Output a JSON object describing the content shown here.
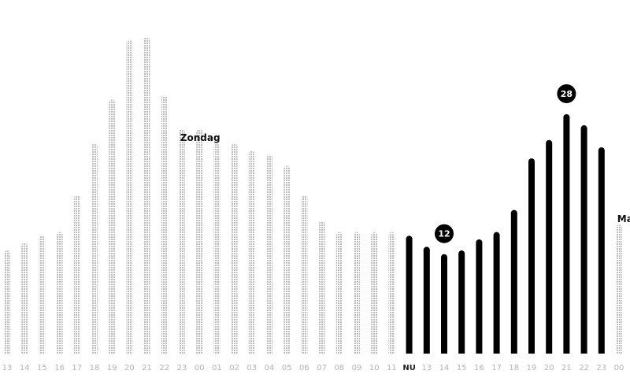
{
  "chart_data": {
    "type": "bar",
    "x": [
      "13",
      "14",
      "15",
      "16",
      "17",
      "18",
      "19",
      "20",
      "21",
      "22",
      "23",
      "00",
      "01",
      "02",
      "03",
      "04",
      "05",
      "06",
      "07",
      "08",
      "09",
      "10",
      "11",
      "NU",
      "13",
      "14",
      "15",
      "16",
      "17",
      "18",
      "19",
      "20",
      "21",
      "22",
      "23",
      "00"
    ],
    "values": [
      14,
      15,
      16,
      16.5,
      21.5,
      28.5,
      34.5,
      42.5,
      43,
      35,
      30.5,
      30.5,
      28.5,
      28.5,
      27.5,
      27,
      25.5,
      21.5,
      18,
      16.5,
      16.5,
      16.5,
      16.5,
      16,
      14.5,
      13.5,
      14,
      15.5,
      16.5,
      19.5,
      26.5,
      29,
      32.5,
      31,
      28,
      17.5
    ],
    "states": [
      "past",
      "past",
      "past",
      "past",
      "past",
      "past",
      "past",
      "past",
      "past",
      "past",
      "past",
      "past",
      "past",
      "past",
      "past",
      "past",
      "past",
      "past",
      "past",
      "past",
      "past",
      "past",
      "past",
      "forecast",
      "forecast",
      "forecast",
      "forecast",
      "forecast",
      "forecast",
      "forecast",
      "forecast",
      "forecast",
      "forecast",
      "forecast",
      "forecast",
      "future"
    ],
    "ylim": [
      0,
      48
    ],
    "day_labels": [
      {
        "text": "Zondag",
        "after_index": 9
      },
      {
        "text": "Maand",
        "after_index": 34
      }
    ],
    "badges": [
      {
        "value": "12",
        "index": 25
      },
      {
        "value": "28",
        "index": 32
      }
    ],
    "colors": {
      "past": "#c4c4c4",
      "forecast": "#000000",
      "future": "#c4c4c4",
      "tick": "#b3b3b3",
      "now_tick": "#222222"
    }
  }
}
